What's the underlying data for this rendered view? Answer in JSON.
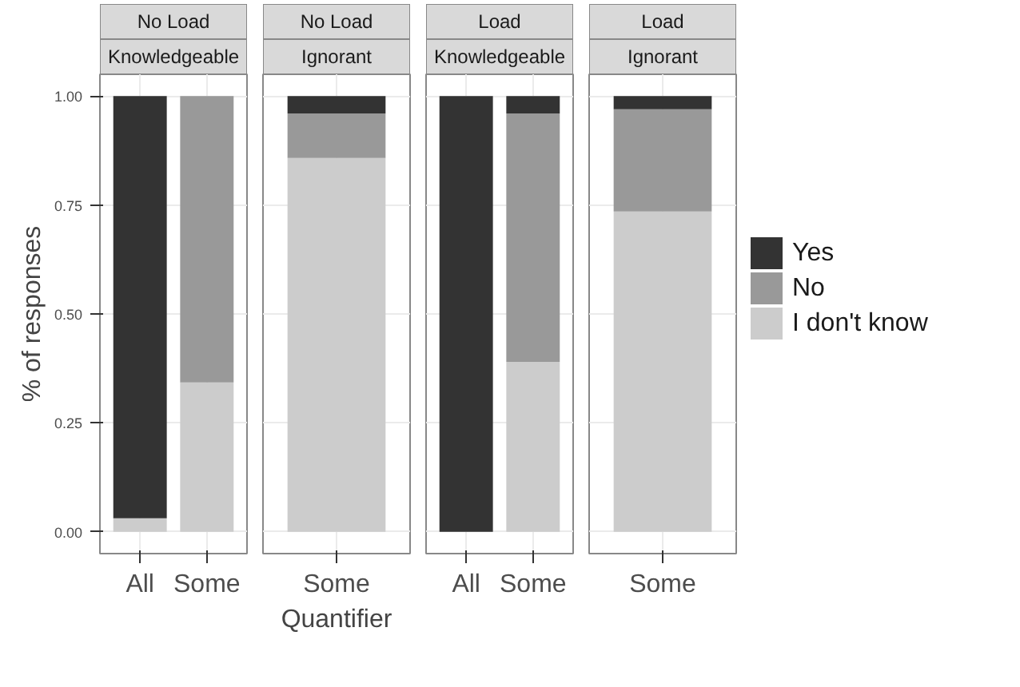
{
  "chart_data": [
    {
      "type": "bar",
      "title": "No Load",
      "subtitle": "Knowledgeable",
      "ylabel": "% of responses",
      "categories": [
        "All",
        "Some"
      ],
      "stacked": true,
      "ylim": [
        -0.05,
        1.05
      ],
      "yticks": [
        {
          "value": 0,
          "label": "0.00"
        },
        {
          "value": 0.25,
          "label": "0.25"
        },
        {
          "value": 0.5,
          "label": "0.50"
        },
        {
          "value": 0.75,
          "label": "0.75"
        },
        {
          "value": 1,
          "label": "1.00"
        }
      ],
      "grid": true,
      "legend": false,
      "series": [
        {
          "color": "#cccccc",
          "values": [
            0.031,
            0.343
          ]
        },
        {
          "color": "#999999",
          "values": [
            0,
            0.657
          ]
        },
        {
          "color": "#333333",
          "values": [
            0.969,
            0
          ]
        }
      ]
    },
    {
      "type": "bar",
      "title": "No Load",
      "subtitle": "Ignorant",
      "xlabel": "Quantifier",
      "categories": [
        "Some"
      ],
      "stacked": true,
      "ylim": [
        -0.05,
        1.05
      ],
      "yticks": [
        0,
        0.25,
        0.5,
        0.75,
        1
      ],
      "grid": true,
      "legend": false,
      "tick_labels": "x",
      "series": [
        {
          "color": "#cccccc",
          "values": [
            0.858
          ]
        },
        {
          "color": "#999999",
          "values": [
            0.102
          ]
        },
        {
          "color": "#333333",
          "values": [
            0.04
          ]
        }
      ]
    },
    {
      "type": "bar",
      "title": "Load",
      "subtitle": "Knowledgeable",
      "categories": [
        "All",
        "Some"
      ],
      "stacked": true,
      "ylim": [
        -0.05,
        1.05
      ],
      "yticks": [
        0,
        0.25,
        0.5,
        0.75,
        1
      ],
      "grid": true,
      "legend": false,
      "tick_labels": "x",
      "series": [
        {
          "color": "#cccccc",
          "values": [
            0,
            0.39
          ]
        },
        {
          "color": "#999999",
          "values": [
            0,
            0.57
          ]
        },
        {
          "color": "#333333",
          "values": [
            1,
            0.04
          ]
        }
      ]
    },
    {
      "type": "bar",
      "title": "Load",
      "subtitle": "Ignorant",
      "categories": [
        "Some"
      ],
      "stacked": true,
      "ylim": [
        -0.05,
        1.05
      ],
      "yticks": [
        0,
        0.25,
        0.5,
        0.75,
        1
      ],
      "grid": true,
      "legend": "right",
      "tick_labels": "x",
      "series": [
        {
          "name": "I don't know",
          "color": "#cccccc",
          "values": [
            0.735
          ]
        },
        {
          "name": "No",
          "color": "#999999",
          "values": [
            0.235
          ]
        },
        {
          "name": "Yes",
          "color": "#333333",
          "values": [
            0.03
          ]
        }
      ]
    }
  ]
}
